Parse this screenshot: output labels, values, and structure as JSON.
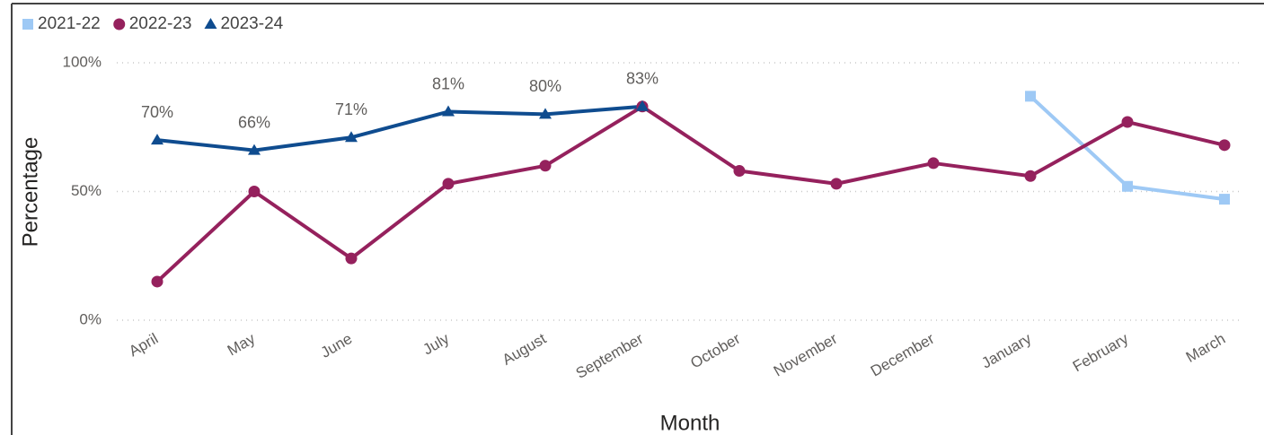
{
  "chart_data": {
    "type": "line",
    "x_label": "Month",
    "y_label": "Percentage",
    "categories": [
      "April",
      "May",
      "June",
      "July",
      "August",
      "September",
      "October",
      "November",
      "December",
      "January",
      "February",
      "March"
    ],
    "series": [
      {
        "name": "2021-22",
        "color": "#9ec9f5",
        "marker": "square",
        "values": [
          null,
          null,
          null,
          null,
          null,
          null,
          null,
          null,
          null,
          87,
          52,
          47
        ]
      },
      {
        "name": "2022-23",
        "color": "#95215d",
        "marker": "circle",
        "values": [
          15,
          50,
          24,
          53,
          60,
          83,
          58,
          53,
          61,
          56,
          77,
          68
        ]
      },
      {
        "name": "2023-24",
        "color": "#0f4c8f",
        "marker": "triangle",
        "values": [
          70,
          66,
          71,
          81,
          80,
          83,
          null,
          null,
          null,
          null,
          null,
          null
        ],
        "value_labels": [
          "70%",
          "66%",
          "71%",
          "81%",
          "80%",
          "83%",
          null,
          null,
          null,
          null,
          null,
          null
        ]
      }
    ],
    "ylim": [
      0,
      100
    ],
    "yticks": [
      {
        "value": 0,
        "label": "0%"
      },
      {
        "value": 50,
        "label": "50%"
      },
      {
        "value": 100,
        "label": "100%"
      }
    ],
    "grid": true,
    "legend": "top-left"
  }
}
